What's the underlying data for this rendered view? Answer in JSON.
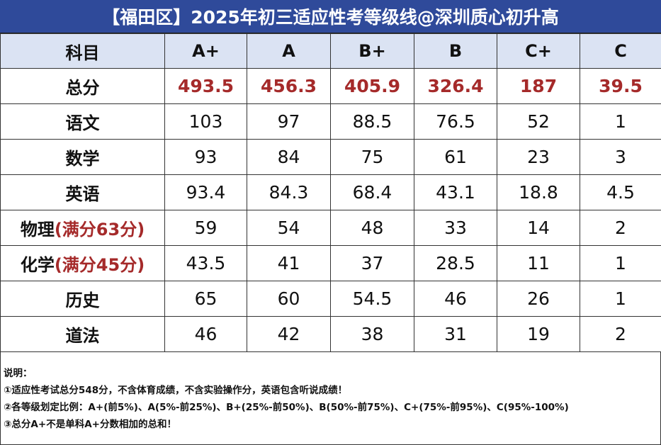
{
  "title": "【福田区】2025年初三适应性考等级线@深圳质心初升高",
  "columns": [
    "科目",
    "A+",
    "A",
    "B+",
    "B",
    "C+",
    "C"
  ],
  "rows": [
    {
      "subject": "总分",
      "note": "",
      "values": [
        "493.5",
        "456.3",
        "405.9",
        "326.4",
        "187",
        "39.5"
      ]
    },
    {
      "subject": "语文",
      "note": "",
      "values": [
        "103",
        "97",
        "88.5",
        "76.5",
        "52",
        "1"
      ]
    },
    {
      "subject": "数学",
      "note": "",
      "values": [
        "93",
        "84",
        "75",
        "61",
        "23",
        "3"
      ]
    },
    {
      "subject": "英语",
      "note": "",
      "values": [
        "93.4",
        "84.3",
        "68.4",
        "43.1",
        "18.8",
        "4.5"
      ]
    },
    {
      "subject": "物理",
      "note": "(满分63分)",
      "values": [
        "59",
        "54",
        "48",
        "33",
        "14",
        "2"
      ]
    },
    {
      "subject": "化学",
      "note": "(满分45分)",
      "values": [
        "43.5",
        "41",
        "37",
        "28.5",
        "11",
        "1"
      ]
    },
    {
      "subject": "历史",
      "note": "",
      "values": [
        "65",
        "60",
        "54.5",
        "46",
        "26",
        "1"
      ]
    },
    {
      "subject": "道法",
      "note": "",
      "values": [
        "46",
        "42",
        "38",
        "31",
        "19",
        "2"
      ]
    }
  ],
  "notes": {
    "heading": "说明：",
    "lines": [
      "①适应性考试总分548分，不含体育成绩，不含实验操作分，英语包含听说成绩！",
      "②各等级划定比例：A+(前5%)、A(5%-前25%)、B+(25%-前50%)、B(50%-前75%)、C+(75%-前95%)、C(95%-100%)",
      "③总分A+不是单科A+分数相加的总和！"
    ]
  },
  "colors": {
    "title_bg": "#2f4a9a",
    "header_bg": "#dbe3f3",
    "highlight": "#a52a2a"
  }
}
